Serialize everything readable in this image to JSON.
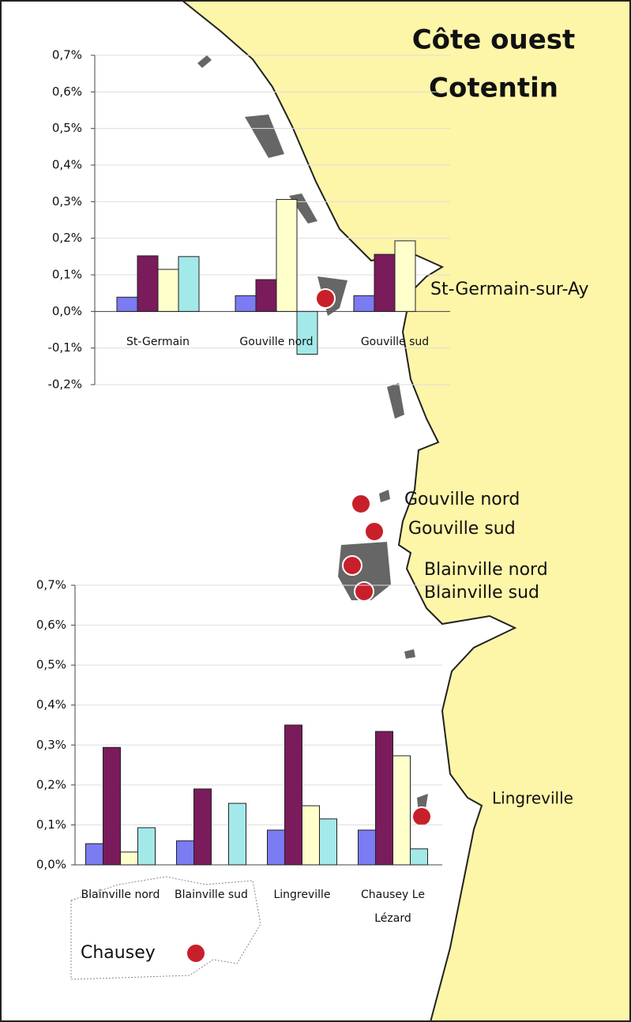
{
  "title_lines": [
    "Côte ouest",
    "Cotentin"
  ],
  "places": [
    "St-Germain-sur-Ay",
    "Gouville nord",
    "Gouville sud",
    "Blainville nord",
    "Blainville sud",
    "Lingreville",
    "Chausey"
  ],
  "chart_data": [
    {
      "type": "bar",
      "categories": [
        "St-Germain",
        "Gouville nord",
        "Gouville sud"
      ],
      "series": [
        {
          "color": "#7b7bf2",
          "values": [
            0.039,
            0.043,
            0.043
          ]
        },
        {
          "color": "#7a1b5c",
          "values": [
            0.152,
            0.087,
            0.156
          ]
        },
        {
          "color": "#ffffcc",
          "values": [
            0.115,
            0.306,
            0.193
          ]
        },
        {
          "color": "#a3e9e9",
          "values": [
            0.15,
            -0.117,
            null
          ]
        }
      ],
      "ylim": [
        -0.2,
        0.7
      ],
      "yticks": [
        {
          "value": -0.2,
          "label": "-0,2%"
        },
        {
          "value": -0.1,
          "label": "-0,1%"
        },
        {
          "value": 0,
          "label": "0,0%"
        },
        {
          "value": 0.1,
          "label": "0,1%"
        },
        {
          "value": 0.2,
          "label": "0,2%"
        },
        {
          "value": 0.3,
          "label": "0,3%"
        },
        {
          "value": 0.4,
          "label": "0,4%"
        },
        {
          "value": 0.5,
          "label": "0,5%"
        },
        {
          "value": 0.6,
          "label": "0,6%"
        },
        {
          "value": 0.7,
          "label": "0,7%"
        }
      ],
      "grid": true
    },
    {
      "type": "bar",
      "categories": [
        "Blainville nord",
        "Blainville sud",
        "Lingreville",
        "Chausey Le Lézard"
      ],
      "series": [
        {
          "color": "#7b7bf2",
          "values": [
            0.053,
            0.06,
            0.087,
            0.087
          ]
        },
        {
          "color": "#7a1b5c",
          "values": [
            0.294,
            0.19,
            0.35,
            0.334
          ]
        },
        {
          "color": "#ffffcc",
          "values": [
            0.032,
            null,
            0.148,
            0.273
          ]
        },
        {
          "color": "#a3e9e9",
          "values": [
            0.093,
            0.154,
            0.115,
            0.04
          ]
        }
      ],
      "ylim": [
        0,
        0.7
      ],
      "yticks": [
        {
          "value": 0,
          "label": "0,0%"
        },
        {
          "value": 0.1,
          "label": "0,1%"
        },
        {
          "value": 0.2,
          "label": "0,2%"
        },
        {
          "value": 0.3,
          "label": "0,3%"
        },
        {
          "value": 0.4,
          "label": "0,4%"
        },
        {
          "value": 0.5,
          "label": "0,5%"
        },
        {
          "value": 0.6,
          "label": "0,6%"
        },
        {
          "value": 0.7,
          "label": "0,7%"
        }
      ],
      "grid": true
    }
  ]
}
